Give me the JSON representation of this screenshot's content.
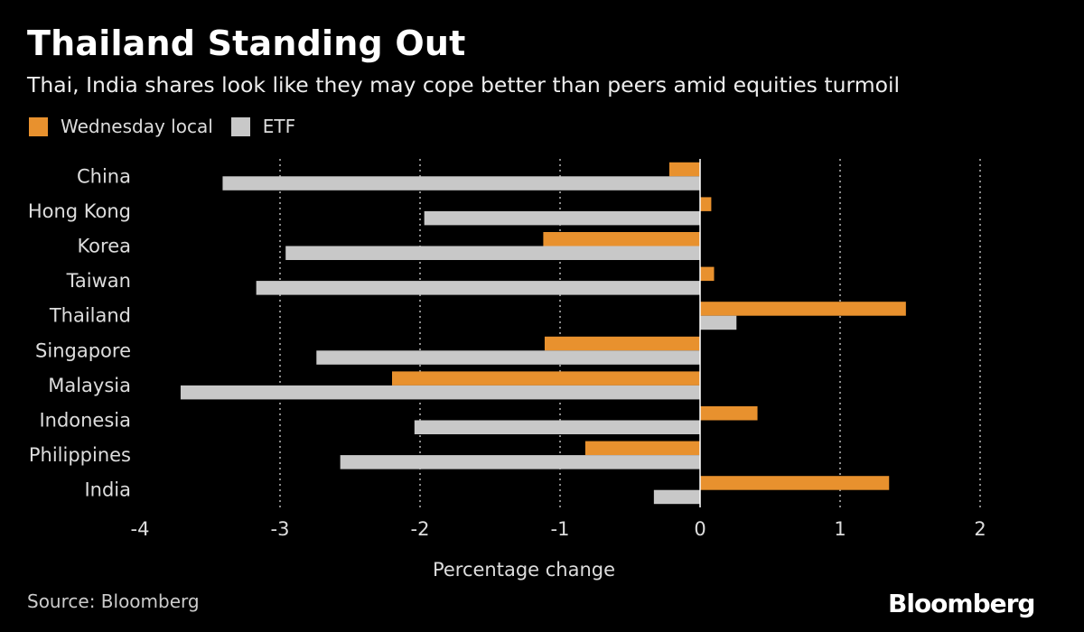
{
  "header": {
    "title": "Thailand Standing Out",
    "subtitle": "Thai, India shares look like they may cope better than peers amid equities turmoil"
  },
  "legend": [
    {
      "label": "Wednesday local",
      "color": "#e8912e"
    },
    {
      "label": "ETF",
      "color": "#c8c8c8"
    }
  ],
  "footer": {
    "source": "Source: Bloomberg",
    "logo": "Bloomberg"
  },
  "chart_data": {
    "type": "bar",
    "orientation": "horizontal",
    "categories": [
      "China",
      "Hong Kong",
      "Korea",
      "Taiwan",
      "Thailand",
      "Singapore",
      "Malaysia",
      "Indonesia",
      "Philippines",
      "India"
    ],
    "series": [
      {
        "name": "Wednesday local",
        "color": "#e8912e",
        "values": [
          -0.22,
          0.08,
          -1.12,
          0.1,
          1.47,
          -1.11,
          -2.2,
          0.41,
          -0.82,
          1.35
        ]
      },
      {
        "name": "ETF",
        "color": "#c8c8c8",
        "values": [
          -3.41,
          -1.97,
          -2.96,
          -3.17,
          0.26,
          -2.74,
          -3.71,
          -2.04,
          -2.57,
          -0.33
        ]
      }
    ],
    "xlabel": "Percentage change",
    "xlim": [
      -4,
      2
    ],
    "xticks": [
      -4,
      -3,
      -2,
      -1,
      0,
      1,
      2
    ],
    "grid": true,
    "legend_position": "top-left"
  }
}
